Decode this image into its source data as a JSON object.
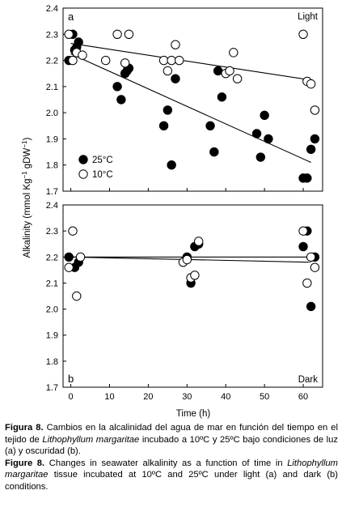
{
  "chart_data": [
    {
      "type": "scatter",
      "panel_label": "a",
      "corner_label": "Light",
      "ylim": [
        1.7,
        2.4
      ],
      "xlim": [
        -2,
        65
      ],
      "yticks": [
        "1.7",
        "1.8",
        "1.9",
        "2.0",
        "2.1",
        "2.2",
        "2.3",
        "2.4"
      ],
      "grid": false,
      "legend_position": "bottom-left",
      "series": [
        {
          "name": "25°C",
          "marker": "filled-circle",
          "points": [
            [
              -0.5,
              2.2
            ],
            [
              0.5,
              2.3
            ],
            [
              1,
              2.24
            ],
            [
              1.5,
              2.25
            ],
            [
              2,
              2.27
            ],
            [
              12,
              2.1
            ],
            [
              13,
              2.05
            ],
            [
              14,
              2.15
            ],
            [
              14.5,
              2.16
            ],
            [
              15,
              2.17
            ],
            [
              24,
              1.95
            ],
            [
              25,
              2.01
            ],
            [
              26,
              1.8
            ],
            [
              27,
              2.13
            ],
            [
              36,
              1.95
            ],
            [
              37,
              1.85
            ],
            [
              38,
              2.16
            ],
            [
              39,
              2.06
            ],
            [
              48,
              1.92
            ],
            [
              49,
              1.83
            ],
            [
              50,
              1.99
            ],
            [
              51,
              1.9
            ],
            [
              60,
              1.75
            ],
            [
              61,
              1.75
            ],
            [
              62,
              1.86
            ],
            [
              63,
              1.9
            ]
          ],
          "trend": [
            [
              0,
              2.225
            ],
            [
              62,
              1.81
            ]
          ]
        },
        {
          "name": "10°C",
          "marker": "open-circle",
          "points": [
            [
              -0.5,
              2.3
            ],
            [
              0.5,
              2.2
            ],
            [
              1.5,
              2.23
            ],
            [
              3,
              2.22
            ],
            [
              9,
              2.2
            ],
            [
              12,
              2.3
            ],
            [
              14,
              2.19
            ],
            [
              15,
              2.3
            ],
            [
              24,
              2.2
            ],
            [
              25,
              2.16
            ],
            [
              26,
              2.2
            ],
            [
              27,
              2.26
            ],
            [
              28,
              2.2
            ],
            [
              40,
              2.15
            ],
            [
              41,
              2.16
            ],
            [
              42,
              2.23
            ],
            [
              43,
              2.13
            ],
            [
              60,
              2.3
            ],
            [
              61,
              2.12
            ],
            [
              62,
              2.11
            ],
            [
              63,
              2.01
            ]
          ],
          "trend": [
            [
              0,
              2.265
            ],
            [
              62,
              2.125
            ]
          ]
        }
      ]
    },
    {
      "type": "scatter",
      "panel_label": "b",
      "corner_label": "Dark",
      "ylim": [
        1.7,
        2.4
      ],
      "xlim": [
        -2,
        65
      ],
      "xticks": [
        "0",
        "10",
        "20",
        "30",
        "40",
        "50",
        "60"
      ],
      "yticks": [
        "1.7",
        "1.8",
        "1.9",
        "2.0",
        "2.1",
        "2.2",
        "2.3",
        "2.4"
      ],
      "grid": false,
      "series": [
        {
          "name": "25°C",
          "marker": "filled-circle",
          "points": [
            [
              -0.5,
              2.2
            ],
            [
              1,
              2.16
            ],
            [
              2,
              2.18
            ],
            [
              30,
              2.2
            ],
            [
              31,
              2.1
            ],
            [
              32,
              2.24
            ],
            [
              33,
              2.25
            ],
            [
              60,
              2.24
            ],
            [
              61,
              2.3
            ],
            [
              62,
              2.01
            ],
            [
              63,
              2.2
            ]
          ],
          "trend": [
            [
              0,
              2.2
            ],
            [
              62,
              2.18
            ]
          ]
        },
        {
          "name": "10°C",
          "marker": "open-circle",
          "points": [
            [
              -0.5,
              2.16
            ],
            [
              0.5,
              2.3
            ],
            [
              1.5,
              2.05
            ],
            [
              2.5,
              2.2
            ],
            [
              29,
              2.18
            ],
            [
              30,
              2.19
            ],
            [
              31,
              2.12
            ],
            [
              32,
              2.13
            ],
            [
              33,
              2.26
            ],
            [
              60,
              2.3
            ],
            [
              61,
              2.1
            ],
            [
              62,
              2.2
            ],
            [
              63,
              2.16
            ]
          ],
          "trend": [
            [
              0,
              2.2
            ],
            [
              62,
              2.2
            ]
          ]
        }
      ]
    }
  ],
  "axes": {
    "ylabel_main": "Alkalinity (mmol Kg",
    "ylabel_sup1": "−1",
    "ylabel_mid": " gDW",
    "ylabel_sup2": "−1",
    "ylabel_end": ")",
    "xlabel": "Time (h)"
  },
  "caption": {
    "es_label": "Figura 8.",
    "es_text_1": " Cambios en la alcalinidad del agua de mar en función del tiempo en el tejido de ",
    "es_species": "Lithophyllum margaritae",
    "es_text_2": " incubado a 10ºC y 25ºC bajo condiciones de luz (a) y oscuridad (b).",
    "en_label": "Figure 8.",
    "en_text_1": " Changes in seawater alkalinity as a function of time in ",
    "en_species": "Lithophyllum margaritae",
    "en_text_2": " tissue incubated at 10ºC and 25ºC under light (a) and dark (b) conditions."
  }
}
